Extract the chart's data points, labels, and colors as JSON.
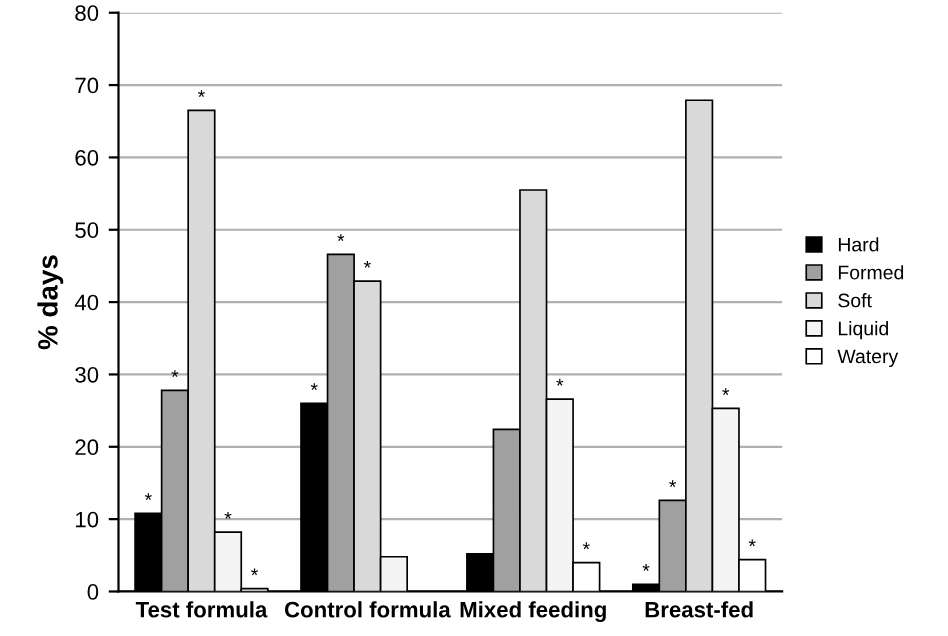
{
  "chart_data": {
    "type": "bar",
    "ylabel": "% days",
    "categories": [
      "Test formula",
      "Control formula",
      "Mixed feeding",
      "Breast-fed"
    ],
    "series": [
      {
        "name": "Hard",
        "color": "#000000",
        "values": [
          10.8,
          26.0,
          5.2,
          1.0
        ],
        "value_labels": [
          "*",
          "*",
          null,
          "*"
        ]
      },
      {
        "name": "Formed",
        "color": "#a0a0a0",
        "values": [
          27.8,
          46.6,
          22.4,
          12.6
        ],
        "value_labels": [
          "*",
          "*",
          null,
          "*"
        ]
      },
      {
        "name": "Soft",
        "color": "#d9d9d9",
        "values": [
          66.5,
          42.9,
          55.5,
          67.9
        ],
        "value_labels": [
          "*",
          "*",
          null,
          null
        ]
      },
      {
        "name": "Liquid",
        "color": "#f4f4f4",
        "values": [
          8.2,
          4.8,
          26.6,
          25.3
        ],
        "value_labels": [
          "*",
          null,
          "*",
          "*"
        ]
      },
      {
        "name": "Watery",
        "color": "#ffffff",
        "values": [
          0.4,
          null,
          4.0,
          4.4
        ],
        "value_labels": [
          "*",
          null,
          "*",
          "*"
        ]
      }
    ],
    "ylim": [
      0,
      80
    ],
    "yticks": [
      0,
      10,
      20,
      30,
      40,
      50,
      60,
      70,
      80
    ],
    "grid": "y",
    "legend": "right"
  }
}
